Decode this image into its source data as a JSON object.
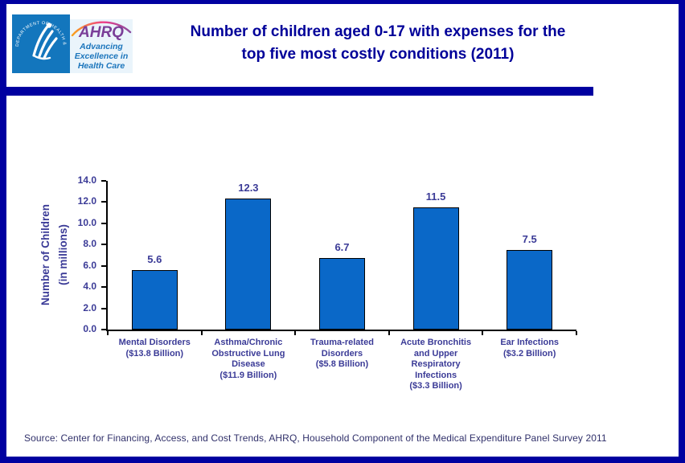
{
  "colors": {
    "frame": "#0000a0",
    "divider": "#0000a0",
    "title_text": "#000099",
    "chart_text": "#3b3b97",
    "axis_line": "#000000",
    "bar_fill": "#0a68c8",
    "bar_border": "#000000",
    "source_text": "#30306a",
    "hhs_blue": "#1376bd",
    "ahrq_purple": "#7a3e98",
    "ahrq_blue": "#1b75bc",
    "ahrq_panel": "#eaf4fb"
  },
  "header": {
    "hhs_logo": {
      "circular_text": "DEPARTMENT OF HEALTH & HUMAN SERVICES • USA"
    },
    "ahrq_logo": {
      "acronym": "AHRQ",
      "tagline_lines": [
        "Advancing",
        "Excellence in",
        "Health Care"
      ]
    },
    "title_lines": [
      "Number of children aged 0-17 with expenses for the",
      "top five most costly conditions (2011)"
    ]
  },
  "chart_data": {
    "type": "bar",
    "title": "Number of children aged 0-17 with expenses for the top five most costly conditions (2011)",
    "ylabel_lines": [
      "Number of Children",
      "(in millions)"
    ],
    "xlabel": "",
    "ylim": [
      0,
      14
    ],
    "ytick_step": 2,
    "ytick_decimals": 1,
    "grid": false,
    "legend": false,
    "categories": [
      "Mental Disorders ($13.8 Billion)",
      "Asthma/Chronic Obstructive Lung Disease ($11.9 Billion)",
      "Trauma-related Disorders ($5.8 Billion)",
      "Acute Bronchitis and Upper Respiratory Infections ($3.3 Billion)",
      "Ear Infections ($3.2 Billion)"
    ],
    "category_label_lines": [
      [
        "Mental Disorders",
        "($13.8 Billion)"
      ],
      [
        "Asthma/Chronic",
        "Obstructive Lung",
        "Disease",
        "($11.9 Billion)"
      ],
      [
        "Trauma-related",
        "Disorders",
        "($5.8 Billion)"
      ],
      [
        "Acute Bronchitis",
        "and Upper",
        "Respiratory",
        "Infections",
        "($3.3 Billion)"
      ],
      [
        "Ear Infections",
        "($3.2 Billion)"
      ]
    ],
    "values": [
      5.6,
      12.3,
      6.7,
      11.5,
      7.5
    ],
    "bar_color": "#0a68c8"
  },
  "footer": {
    "source": "Source: Center for Financing, Access, and Cost Trends, AHRQ, Household Component of the Medical Expenditure Panel Survey 2011"
  }
}
